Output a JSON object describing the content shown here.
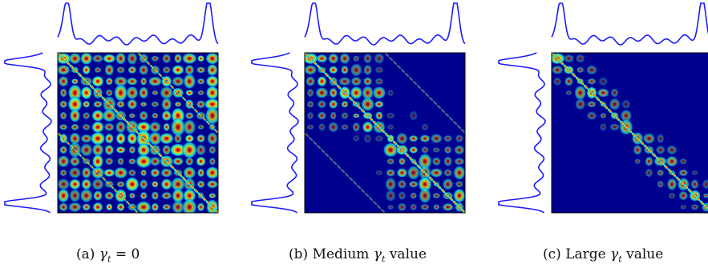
{
  "figure": {
    "panels": [
      {
        "label": "(a)",
        "caption_prefix": "",
        "caption_suffix": "= 0",
        "gamma_level": "zero"
      },
      {
        "label": "(b)",
        "caption_prefix": "Medium",
        "caption_suffix": "value",
        "gamma_level": "medium"
      },
      {
        "label": "(c)",
        "caption_prefix": "Large",
        "caption_suffix": "value",
        "gamma_level": "large"
      }
    ],
    "symbol": "γ",
    "subscript": "t",
    "colors": {
      "marginal_curve": "#1a1aff",
      "map_background": "#00008f",
      "frame": "#000000"
    },
    "colormap": "jet"
  }
}
